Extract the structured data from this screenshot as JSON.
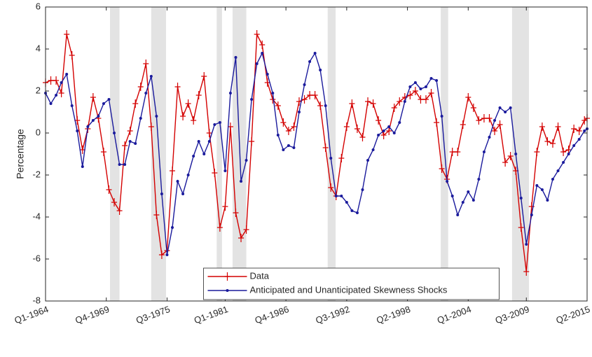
{
  "chart_data": {
    "type": "line",
    "y_label": "Percentage",
    "x": [
      1964,
      1964.5,
      1965,
      1965.5,
      1966,
      1966.5,
      1967,
      1967.5,
      1968,
      1968.5,
      1969,
      1969.5,
      1970,
      1970.5,
      1971,
      1971.5,
      1972,
      1972.5,
      1973,
      1973.5,
      1974,
      1974.5,
      1975,
      1975.5,
      1976,
      1976.5,
      1977,
      1977.5,
      1978,
      1978.5,
      1979,
      1979.5,
      1980,
      1980.5,
      1981,
      1981.5,
      1982,
      1982.5,
      1983,
      1983.5,
      1984,
      1984.5,
      1985,
      1985.5,
      1986,
      1986.5,
      1987,
      1987.5,
      1988,
      1988.5,
      1989,
      1989.5,
      1990,
      1990.5,
      1991,
      1991.5,
      1992,
      1992.5,
      1993,
      1993.5,
      1994,
      1994.5,
      1995,
      1995.5,
      1996,
      1996.5,
      1997,
      1997.5,
      1998,
      1998.5,
      1999,
      1999.5,
      2000,
      2000.5,
      2001,
      2001.5,
      2002,
      2002.5,
      2003,
      2003.5,
      2004,
      2004.5,
      2005,
      2005.5,
      2006,
      2006.5,
      2007,
      2007.5,
      2008,
      2008.5,
      2009,
      2009.5,
      2010,
      2010.5,
      2011,
      2011.5,
      2012,
      2012.5,
      2013,
      2013.5,
      2014,
      2014.5,
      2015,
      2015.25
    ],
    "series": [
      {
        "name": "Data",
        "color": "#d40000",
        "marker": "plus",
        "values": [
          2.4,
          2.5,
          2.5,
          1.9,
          4.7,
          3.7,
          0.6,
          -0.8,
          0.2,
          1.7,
          0.7,
          -0.9,
          -2.7,
          -3.3,
          -3.7,
          -0.6,
          0.1,
          1.4,
          2.2,
          3.3,
          0.3,
          -3.9,
          -5.8,
          -5.6,
          -1.8,
          2.2,
          0.8,
          1.4,
          0.6,
          1.8,
          2.7,
          0.0,
          -1.9,
          -4.5,
          -3.5,
          0.3,
          -3.8,
          -5.0,
          -4.6,
          -0.4,
          4.7,
          4.2,
          2.4,
          1.6,
          1.3,
          0.5,
          0.1,
          0.3,
          1.5,
          1.6,
          1.8,
          1.8,
          1.3,
          -0.7,
          -2.6,
          -3.0,
          -1.2,
          0.3,
          1.4,
          0.2,
          -0.2,
          1.5,
          1.4,
          0.6,
          -0.1,
          0.1,
          1.2,
          1.5,
          1.7,
          1.8,
          2.0,
          1.6,
          1.6,
          1.9,
          0.5,
          -1.7,
          -2.2,
          -0.9,
          -0.9,
          0.4,
          1.7,
          1.2,
          0.6,
          0.7,
          0.7,
          0.1,
          0.4,
          -1.4,
          -1.1,
          -1.8,
          -4.5,
          -6.6,
          -3.5,
          -0.9,
          0.3,
          -0.4,
          -0.5,
          0.3,
          -0.9,
          -0.8,
          0.2,
          0.1,
          0.6,
          0.7
        ]
      },
      {
        "name": "Anticipated and Unanticipated Skewness Shocks",
        "color": "#1a1a9c",
        "marker": "dot",
        "values": [
          1.9,
          1.4,
          1.8,
          2.4,
          2.8,
          1.3,
          0.1,
          -1.6,
          0.3,
          0.6,
          0.8,
          1.4,
          1.6,
          0.0,
          -1.5,
          -1.5,
          -0.4,
          -0.5,
          0.7,
          1.9,
          2.7,
          0.8,
          -2.9,
          -5.8,
          -4.5,
          -2.3,
          -2.9,
          -2.0,
          -1.1,
          -0.4,
          -1.0,
          -0.4,
          0.4,
          0.5,
          -1.8,
          1.9,
          3.6,
          -2.3,
          -1.3,
          1.6,
          3.3,
          3.8,
          2.8,
          1.9,
          -0.1,
          -0.8,
          -0.6,
          -0.7,
          1.0,
          2.3,
          3.4,
          3.8,
          3.0,
          1.3,
          -1.2,
          -3.0,
          -3.0,
          -3.3,
          -3.7,
          -3.8,
          -2.7,
          -1.3,
          -0.8,
          -0.1,
          0.1,
          0.3,
          0.0,
          0.5,
          1.5,
          2.2,
          2.4,
          2.1,
          2.2,
          2.6,
          2.5,
          0.8,
          -2.3,
          -3.0,
          -3.9,
          -3.3,
          -2.8,
          -3.2,
          -2.2,
          -0.9,
          -0.2,
          0.6,
          1.2,
          1.0,
          1.2,
          -1.0,
          -3.1,
          -5.3,
          -3.9,
          -2.5,
          -2.7,
          -3.2,
          -2.2,
          -1.8,
          -1.4,
          -1.0,
          -0.6,
          -0.3,
          0.1,
          0.2
        ]
      }
    ],
    "shaded_periods": [
      [
        1970.1,
        1971.0
      ],
      [
        1974.0,
        1975.4
      ],
      [
        1980.2,
        1980.7
      ],
      [
        1981.7,
        1983.0
      ],
      [
        1990.7,
        1991.45
      ],
      [
        2001.4,
        2002.1
      ],
      [
        2008.15,
        2009.75
      ]
    ],
    "shade_color": "#e3e3e3",
    "xlim": [
      1964,
      2015.25
    ],
    "xticks": [
      {
        "value": 1964,
        "label": "Q1-1964"
      },
      {
        "value": 1969.75,
        "label": "Q4-1969"
      },
      {
        "value": 1975.5,
        "label": "Q3-1975"
      },
      {
        "value": 1981,
        "label": "Q1-1981"
      },
      {
        "value": 1986.75,
        "label": "Q4-1986"
      },
      {
        "value": 1992.5,
        "label": "Q3-1992"
      },
      {
        "value": 1998.25,
        "label": "Q2-1998"
      },
      {
        "value": 2004,
        "label": "Q1-2004"
      },
      {
        "value": 2009.5,
        "label": "Q3-2009"
      },
      {
        "value": 2015.25,
        "label": "Q2-2015"
      }
    ],
    "ylim": [
      -8,
      6
    ],
    "yticks": [
      -8,
      -6,
      -4,
      -2,
      0,
      2,
      4,
      6
    ],
    "grid": false,
    "legend": "bottom"
  }
}
